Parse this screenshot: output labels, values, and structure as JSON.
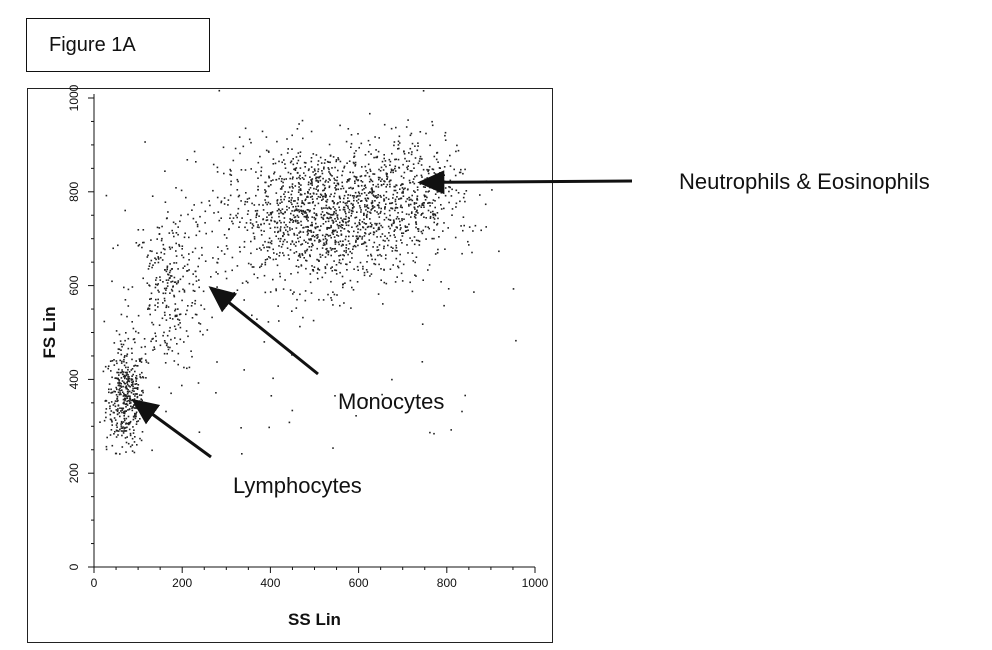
{
  "figure_label": "Figure 1A",
  "chart_data": {
    "type": "scatter",
    "title": "",
    "xlabel": "SS Lin",
    "ylabel": "FS Lin",
    "xlim": [
      0,
      1000
    ],
    "ylim": [
      0,
      1000
    ],
    "xticks": [
      0,
      200,
      400,
      600,
      800,
      1000
    ],
    "yticks": [
      0,
      200,
      400,
      600,
      800,
      1000
    ],
    "grid": false,
    "series": [
      {
        "clusters": [
          {
            "cx": 70,
            "cy": 360,
            "sx": 22,
            "sy": 55,
            "n": 420
          },
          {
            "cx": 170,
            "cy": 590,
            "sx": 45,
            "sy": 90,
            "n": 300
          },
          {
            "cx": 520,
            "cy": 750,
            "sx": 120,
            "sy": 75,
            "n": 1500
          },
          {
            "cx": 720,
            "cy": 820,
            "sx": 70,
            "sy": 55,
            "n": 300
          },
          {
            "cx": 400,
            "cy": 500,
            "sx": 260,
            "sy": 230,
            "n": 90
          }
        ]
      }
    ],
    "annotations": [
      {
        "text": "Neutrophils & Eosinophils",
        "x_text": 1220,
        "y_text": 820,
        "x_arrow": 740,
        "y_arrow": 820
      },
      {
        "text": "Monocytes",
        "x_text": 560,
        "y_text": 360,
        "x_arrow": 265,
        "y_arrow": 595
      },
      {
        "text": "Lymphocytes",
        "x_text": 480,
        "y_text": 180,
        "x_arrow": 90,
        "y_arrow": 355
      }
    ]
  }
}
